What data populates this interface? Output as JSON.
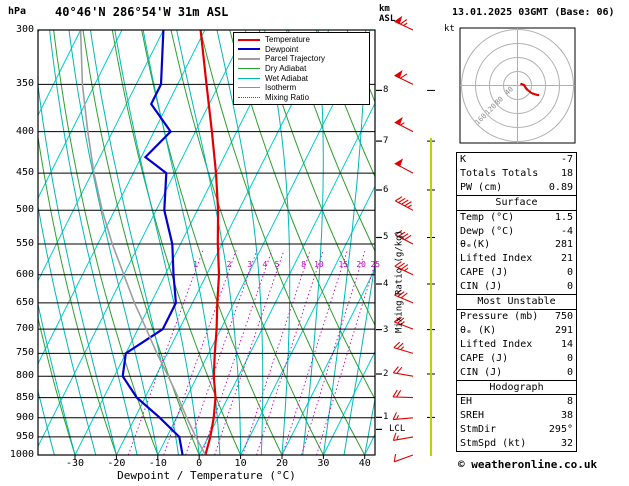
{
  "header": {
    "pressure_unit": "hPa",
    "station": "40°46'N 286°54'W 31m ASL",
    "altitude_unit": "km\nASL",
    "datetime": "13.01.2025 03GMT (Base: 06)"
  },
  "axes": {
    "pressure_ticks": [
      "300",
      "350",
      "400",
      "450",
      "500",
      "550",
      "600",
      "650",
      "700",
      "750",
      "800",
      "850",
      "900",
      "950",
      "1000"
    ],
    "temp_ticks": [
      "-30",
      "-20",
      "-10",
      "0",
      "10",
      "20",
      "30",
      "40"
    ],
    "xlabel": "Dewpoint / Temperature (°C)",
    "mixing_ratio_axis_label": "Mixing Ratio (g/kg)"
  },
  "legend": [
    {
      "key": "temperature",
      "label": "Temperature",
      "color": "#e10000",
      "style": "solid",
      "width": 2
    },
    {
      "key": "dewpoint",
      "label": "Dewpoint",
      "color": "#0000d2",
      "style": "solid",
      "width": 2
    },
    {
      "key": "parcel-trajectory",
      "label": "Parcel Trajectory",
      "color": "#9e9e9e",
      "style": "solid",
      "width": 2
    },
    {
      "key": "dry-adiabat",
      "label": "Dry Adiabat",
      "color": "#2ca02c",
      "style": "solid",
      "width": 1
    },
    {
      "key": "wet-adiabat",
      "label": "Wet Adiabat",
      "color": "#00b8b8",
      "style": "solid",
      "width": 1
    },
    {
      "key": "isotherm",
      "label": "Isotherm",
      "color": "#00cdcd",
      "style": "solid",
      "width": 1
    },
    {
      "key": "mixing-ratio",
      "label": "Mixing Ratio",
      "color": "#c800c8",
      "style": "dotted",
      "width": 1
    }
  ],
  "hodograph": {
    "unit_label": "kt",
    "rings": [
      40,
      80,
      120,
      160
    ]
  },
  "table": {
    "top": [
      [
        "K",
        "-7"
      ],
      [
        "Totals Totals",
        "18"
      ],
      [
        "PW (cm)",
        "0.89"
      ]
    ],
    "sections": [
      {
        "title": "Surface",
        "rows": [
          [
            "Temp (°C)",
            "1.5"
          ],
          [
            "Dewp (°C)",
            "-4"
          ],
          [
            "θₑ(K)",
            "281"
          ],
          [
            "Lifted Index",
            "21"
          ],
          [
            "CAPE (J)",
            "0"
          ],
          [
            "CIN (J)",
            "0"
          ]
        ]
      },
      {
        "title": "Most Unstable",
        "rows": [
          [
            "Pressure (mb)",
            "750"
          ],
          [
            "θₑ (K)",
            "291"
          ],
          [
            "Lifted Index",
            "14"
          ],
          [
            "CAPE (J)",
            "0"
          ],
          [
            "CIN (J)",
            "0"
          ]
        ]
      },
      {
        "title": "Hodograph",
        "rows": [
          [
            "EH",
            "8"
          ],
          [
            "SREH",
            "38"
          ],
          [
            "StmDir",
            "295°"
          ],
          [
            "StmSpd (kt)",
            "32"
          ]
        ]
      }
    ]
  },
  "footer": {
    "copyright": "© weatheronline.co.uk"
  },
  "chart_data": {
    "type": "line",
    "title": "Skew-T log-P sounding",
    "x_axis": {
      "label": "Dewpoint / Temperature (°C)",
      "range": [
        -40,
        45
      ],
      "skew": true,
      "ticks": [
        -30,
        -20,
        -10,
        0,
        10,
        20,
        30,
        40
      ]
    },
    "y_axis": {
      "label": "hPa",
      "scale": "log",
      "range": [
        1000,
        300
      ]
    },
    "isotherm_step_c": 10,
    "dry_adiabat_step_c": 10,
    "wet_adiabat_step_c": 5,
    "mixing_ratio_lines": [
      1,
      2,
      3,
      4,
      5,
      8,
      10,
      15,
      20,
      25
    ],
    "colors": {
      "temperature": "#e10000",
      "dewpoint": "#0000d2",
      "parcel": "#9e9e9e",
      "dry_adiabat": "#2ca02c",
      "wet_adiabat": "#00b8b8",
      "isotherm": "#00cdcd",
      "mixing_ratio": "#c800c8",
      "barb": "#e10000",
      "height_line": "#b8d400",
      "grid": "#000000"
    },
    "series": [
      {
        "name": "Temperature",
        "color": "#e10000",
        "width": 2.2,
        "points": [
          [
            1000,
            1.5
          ],
          [
            950,
            0.5
          ],
          [
            900,
            -1
          ],
          [
            850,
            -3
          ],
          [
            800,
            -6
          ],
          [
            750,
            -8.5
          ],
          [
            700,
            -11
          ],
          [
            650,
            -14
          ],
          [
            600,
            -17
          ],
          [
            550,
            -21
          ],
          [
            500,
            -25
          ],
          [
            450,
            -30
          ],
          [
            400,
            -36
          ],
          [
            350,
            -43
          ],
          [
            300,
            -51
          ]
        ]
      },
      {
        "name": "Dewpoint",
        "color": "#0000d2",
        "width": 2.2,
        "points": [
          [
            1000,
            -4
          ],
          [
            950,
            -7
          ],
          [
            900,
            -14
          ],
          [
            850,
            -22
          ],
          [
            800,
            -28
          ],
          [
            750,
            -30
          ],
          [
            700,
            -24
          ],
          [
            650,
            -24
          ],
          [
            600,
            -28
          ],
          [
            550,
            -32
          ],
          [
            500,
            -38
          ],
          [
            450,
            -42
          ],
          [
            430,
            -49
          ],
          [
            400,
            -46
          ],
          [
            370,
            -54
          ],
          [
            350,
            -54
          ],
          [
            300,
            -60
          ]
        ]
      },
      {
        "name": "Parcel Trajectory",
        "color": "#9e9e9e",
        "width": 1.6,
        "points": [
          [
            1000,
            1.5
          ],
          [
            950,
            -3
          ],
          [
            900,
            -7.5
          ],
          [
            850,
            -12
          ],
          [
            800,
            -17
          ],
          [
            750,
            -22.5
          ],
          [
            700,
            -28
          ],
          [
            650,
            -34
          ],
          [
            600,
            -40
          ],
          [
            550,
            -46.5
          ],
          [
            500,
            -53
          ],
          [
            450,
            -59.5
          ],
          [
            400,
            -66
          ],
          [
            350,
            -73
          ],
          [
            300,
            -80
          ]
        ]
      }
    ],
    "wind_barbs": [
      {
        "p": 1000,
        "spd": 12,
        "dir": 250
      },
      {
        "p": 950,
        "spd": 15,
        "dir": 260
      },
      {
        "p": 900,
        "spd": 18,
        "dir": 265
      },
      {
        "p": 850,
        "spd": 20,
        "dir": 272
      },
      {
        "p": 800,
        "spd": 22,
        "dir": 280
      },
      {
        "p": 750,
        "spd": 25,
        "dir": 287
      },
      {
        "p": 700,
        "spd": 28,
        "dir": 291
      },
      {
        "p": 650,
        "spd": 30,
        "dir": 293
      },
      {
        "p": 600,
        "spd": 35,
        "dir": 295
      },
      {
        "p": 550,
        "spd": 40,
        "dir": 297
      },
      {
        "p": 500,
        "spd": 45,
        "dir": 298
      },
      {
        "p": 450,
        "spd": 50,
        "dir": 298
      },
      {
        "p": 400,
        "spd": 55,
        "dir": 297
      },
      {
        "p": 350,
        "spd": 60,
        "dir": 296
      },
      {
        "p": 300,
        "spd": 65,
        "dir": 295
      }
    ],
    "km_levels": [
      {
        "km": "8",
        "p": 356
      },
      {
        "km": "7",
        "p": 411
      },
      {
        "km": "6",
        "p": 472
      },
      {
        "km": "5",
        "p": 540
      },
      {
        "km": "4",
        "p": 616
      },
      {
        "km": "3",
        "p": 701
      },
      {
        "km": "2",
        "p": 795
      },
      {
        "km": "1",
        "p": 899
      }
    ],
    "lcl": {
      "label": "LCL",
      "p": 930
    }
  }
}
